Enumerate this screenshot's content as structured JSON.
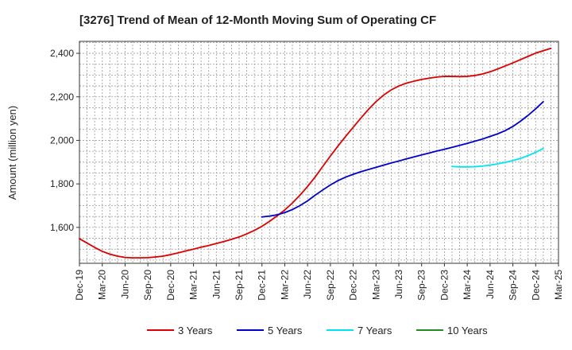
{
  "chart_data": {
    "type": "line",
    "title": "[3276]  Trend of Mean of 12-Month Moving Sum of Operating CF",
    "xlabel": "",
    "ylabel": "Amount (million yen)",
    "ylim": [
      1435,
      2455
    ],
    "yticks": [
      1600,
      1800,
      2000,
      2200,
      2400
    ],
    "ytick_labels": [
      "1,600",
      "1,800",
      "2,000",
      "2,200",
      "2,400"
    ],
    "x_tick_labels": [
      "Dec-19",
      "Mar-20",
      "Jun-20",
      "Sep-20",
      "Dec-20",
      "Mar-21",
      "Jun-21",
      "Sep-21",
      "Dec-21",
      "Mar-22",
      "Jun-22",
      "Sep-22",
      "Dec-22",
      "Mar-23",
      "Jun-23",
      "Sep-23",
      "Dec-23",
      "Mar-24",
      "Jun-24",
      "Sep-24",
      "Dec-24",
      "Mar-25"
    ],
    "x_range_months": [
      0,
      63
    ],
    "grid": true,
    "legend_position": "bottom",
    "series": [
      {
        "name": "3 Years",
        "color": "#dd0000",
        "points": [
          [
            0,
            1548
          ],
          [
            1,
            1528
          ],
          [
            2,
            1508
          ],
          [
            3,
            1490
          ],
          [
            4,
            1477
          ],
          [
            5,
            1468
          ],
          [
            6,
            1462
          ],
          [
            7,
            1460
          ],
          [
            8,
            1460
          ],
          [
            9,
            1461
          ],
          [
            10,
            1464
          ],
          [
            11,
            1468
          ],
          [
            12,
            1475
          ],
          [
            13,
            1483
          ],
          [
            14,
            1492
          ],
          [
            15,
            1500
          ],
          [
            16,
            1509
          ],
          [
            17,
            1517
          ],
          [
            18,
            1526
          ],
          [
            19,
            1535
          ],
          [
            20,
            1545
          ],
          [
            21,
            1556
          ],
          [
            22,
            1570
          ],
          [
            23,
            1586
          ],
          [
            24,
            1605
          ],
          [
            25,
            1628
          ],
          [
            26,
            1653
          ],
          [
            27,
            1680
          ],
          [
            28,
            1712
          ],
          [
            29,
            1748
          ],
          [
            30,
            1788
          ],
          [
            31,
            1832
          ],
          [
            32,
            1880
          ],
          [
            33,
            1928
          ],
          [
            34,
            1974
          ],
          [
            35,
            2018
          ],
          [
            36,
            2060
          ],
          [
            37,
            2102
          ],
          [
            38,
            2142
          ],
          [
            39,
            2178
          ],
          [
            40,
            2208
          ],
          [
            41,
            2232
          ],
          [
            42,
            2250
          ],
          [
            43,
            2263
          ],
          [
            44,
            2272
          ],
          [
            45,
            2280
          ],
          [
            46,
            2286
          ],
          [
            47,
            2291
          ],
          [
            48,
            2294
          ],
          [
            49,
            2294
          ],
          [
            50,
            2293
          ],
          [
            51,
            2294
          ],
          [
            52,
            2298
          ],
          [
            53,
            2305
          ],
          [
            54,
            2315
          ],
          [
            55,
            2328
          ],
          [
            56,
            2342
          ],
          [
            57,
            2356
          ],
          [
            58,
            2371
          ],
          [
            59,
            2386
          ],
          [
            60,
            2401
          ],
          [
            61,
            2412
          ],
          [
            62,
            2423
          ]
        ]
      },
      {
        "name": "5 Years",
        "color": "#0000cc",
        "points": [
          [
            24,
            1648
          ],
          [
            25,
            1652
          ],
          [
            26,
            1658
          ],
          [
            27,
            1668
          ],
          [
            28,
            1682
          ],
          [
            29,
            1700
          ],
          [
            30,
            1722
          ],
          [
            31,
            1748
          ],
          [
            32,
            1772
          ],
          [
            33,
            1795
          ],
          [
            34,
            1815
          ],
          [
            35,
            1831
          ],
          [
            36,
            1844
          ],
          [
            37,
            1856
          ],
          [
            38,
            1866
          ],
          [
            39,
            1876
          ],
          [
            40,
            1886
          ],
          [
            41,
            1896
          ],
          [
            42,
            1905
          ],
          [
            43,
            1915
          ],
          [
            44,
            1924
          ],
          [
            45,
            1933
          ],
          [
            46,
            1942
          ],
          [
            47,
            1951
          ],
          [
            48,
            1959
          ],
          [
            49,
            1968
          ],
          [
            50,
            1977
          ],
          [
            51,
            1986
          ],
          [
            52,
            1996
          ],
          [
            53,
            2006
          ],
          [
            54,
            2018
          ],
          [
            55,
            2030
          ],
          [
            56,
            2045
          ],
          [
            57,
            2064
          ],
          [
            58,
            2088
          ],
          [
            59,
            2115
          ],
          [
            60,
            2145
          ],
          [
            61,
            2178
          ]
        ]
      },
      {
        "name": "7 Years",
        "color": "#00e5ee",
        "points": [
          [
            49,
            1880
          ],
          [
            50,
            1878
          ],
          [
            51,
            1878
          ],
          [
            52,
            1879
          ],
          [
            53,
            1882
          ],
          [
            54,
            1886
          ],
          [
            55,
            1892
          ],
          [
            56,
            1899
          ],
          [
            57,
            1907
          ],
          [
            58,
            1917
          ],
          [
            59,
            1930
          ],
          [
            60,
            1945
          ],
          [
            61,
            1963
          ]
        ]
      },
      {
        "name": "10 Years",
        "color": "#228b22",
        "points": []
      }
    ]
  }
}
